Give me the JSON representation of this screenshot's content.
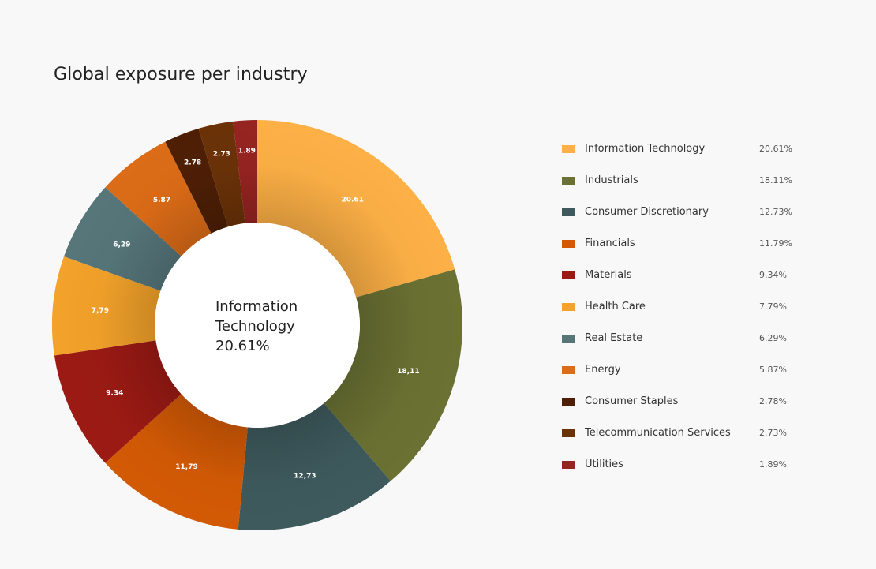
{
  "title": "Global exposure per industry",
  "center": {
    "line1": "Information",
    "line2": "Technology",
    "line3": "20.61%"
  },
  "chart_data": {
    "type": "pie",
    "title": "Global exposure per industry",
    "donut": true,
    "slices": [
      {
        "name": "Information Technology",
        "value": 20.61,
        "legend_value": "20.61%",
        "slice_label": "20.61",
        "color": "#fdb046"
      },
      {
        "name": "Industrials",
        "value": 18.11,
        "legend_value": "18.11%",
        "slice_label": "18,11",
        "color": "#6a7132"
      },
      {
        "name": "Consumer Discretionary",
        "value": 12.73,
        "legend_value": "12.73%",
        "slice_label": "12,73",
        "color": "#3e5a5d"
      },
      {
        "name": "Financials",
        "value": 11.79,
        "legend_value": "11.79%",
        "slice_label": "11,79",
        "color": "#d35a05"
      },
      {
        "name": "Materials",
        "value": 9.34,
        "legend_value": "9.34%",
        "slice_label": "9.34",
        "color": "#9c1a14"
      },
      {
        "name": "Health Care",
        "value": 7.79,
        "legend_value": "7.79%",
        "slice_label": "7,79",
        "color": "#f3a22a"
      },
      {
        "name": "Real Estate",
        "value": 6.29,
        "legend_value": "6.29%",
        "slice_label": "6,29",
        "color": "#56767a"
      },
      {
        "name": "Energy",
        "value": 5.87,
        "legend_value": "5.87%",
        "slice_label": "5.87",
        "color": "#dc6c17"
      },
      {
        "name": "Consumer Staples",
        "value": 2.78,
        "legend_value": "2.78%",
        "slice_label": "2.78",
        "color": "#4e1f05"
      },
      {
        "name": "Telecommunication Services",
        "value": 2.73,
        "legend_value": "2.73%",
        "slice_label": "2.73",
        "color": "#6b3208"
      },
      {
        "name": "Utilities",
        "value": 1.89,
        "legend_value": "1.89%",
        "slice_label": "1.89",
        "color": "#962421"
      }
    ]
  }
}
